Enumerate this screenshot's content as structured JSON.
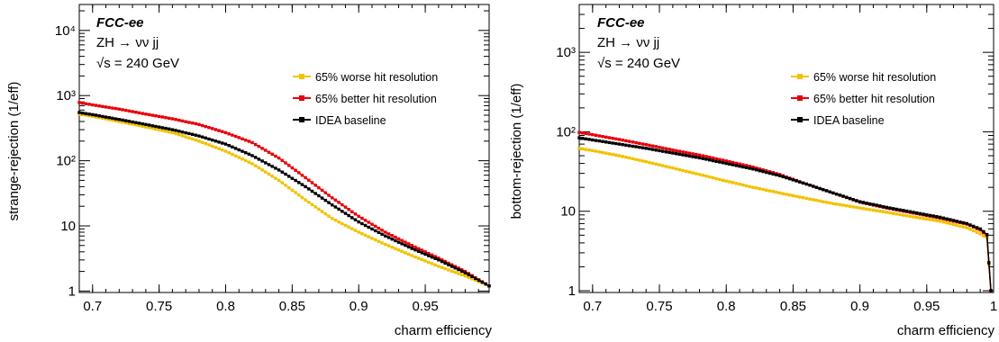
{
  "chart_data": [
    {
      "type": "line",
      "xlabel": "charm efficiency",
      "ylabel": "strange-rejection (1/eff)",
      "yscale": "log",
      "xlim": [
        0.69,
        0.998
      ],
      "ylim": [
        0.95,
        25000
      ],
      "xticks": [
        0.7,
        0.75,
        0.8,
        0.85,
        0.9,
        0.95
      ],
      "xtick_labels": [
        "0.7",
        "0.75",
        "0.8",
        "0.85",
        "0.9",
        "0.95"
      ],
      "yticks": [
        1,
        10,
        100,
        1000,
        10000
      ],
      "ytick_labels": [
        "1",
        "10",
        "10²",
        "10³",
        "10⁴"
      ],
      "annotations": {
        "experiment": "FCC-ee",
        "process": "ZH → νν jj",
        "energy": "√s = 240 GeV"
      },
      "legend_position": "top-right",
      "series": [
        {
          "name": "65% worse hit resolution",
          "color": "#f2c200",
          "x": [
            0.69,
            0.7,
            0.72,
            0.74,
            0.76,
            0.78,
            0.8,
            0.82,
            0.84,
            0.86,
            0.88,
            0.9,
            0.92,
            0.94,
            0.96,
            0.98,
            0.998
          ],
          "values": [
            520,
            480,
            400,
            330,
            270,
            200,
            140,
            90,
            50,
            25,
            13,
            8,
            5.2,
            3.5,
            2.4,
            1.7,
            1.2
          ]
        },
        {
          "name": "65% better hit resolution",
          "color": "#e8000b",
          "x": [
            0.69,
            0.7,
            0.72,
            0.74,
            0.76,
            0.78,
            0.8,
            0.82,
            0.84,
            0.86,
            0.88,
            0.9,
            0.92,
            0.94,
            0.96,
            0.98,
            0.998
          ],
          "values": [
            780,
            720,
            620,
            520,
            440,
            360,
            270,
            190,
            110,
            55,
            27,
            14,
            8,
            5,
            3.2,
            2,
            1.2
          ]
        },
        {
          "name": "IDEA baseline",
          "color": "#000000",
          "x": [
            0.69,
            0.7,
            0.72,
            0.74,
            0.76,
            0.78,
            0.8,
            0.82,
            0.84,
            0.86,
            0.88,
            0.9,
            0.92,
            0.94,
            0.96,
            0.98,
            0.998
          ],
          "values": [
            550,
            510,
            430,
            360,
            300,
            240,
            180,
            120,
            72,
            40,
            21,
            11.5,
            7,
            4.5,
            3,
            1.9,
            1.2
          ]
        }
      ]
    },
    {
      "type": "line",
      "xlabel": "charm efficiency",
      "ylabel": "bottom-rejection (1/eff)",
      "yscale": "log",
      "xlim": [
        0.69,
        1.0
      ],
      "ylim": [
        0.95,
        4000
      ],
      "xticks": [
        0.7,
        0.75,
        0.8,
        0.85,
        0.9,
        0.95,
        1.0
      ],
      "xtick_labels": [
        "0.7",
        "0.75",
        "0.8",
        "0.85",
        "0.9",
        "0.95",
        "1"
      ],
      "yticks": [
        1,
        10,
        100,
        1000
      ],
      "ytick_labels": [
        "1",
        "10",
        "10²",
        "10³"
      ],
      "annotations": {
        "experiment": "FCC-ee",
        "process": "ZH → νν jj",
        "energy": "√s = 240 GeV"
      },
      "legend_position": "top-right",
      "series": [
        {
          "name": "65% worse hit resolution",
          "color": "#f2c200",
          "x": [
            0.69,
            0.7,
            0.72,
            0.74,
            0.76,
            0.78,
            0.8,
            0.82,
            0.84,
            0.86,
            0.88,
            0.9,
            0.92,
            0.94,
            0.96,
            0.98,
            0.99,
            0.995,
            0.998
          ],
          "values": [
            62,
            58,
            50,
            42,
            35,
            29,
            24,
            20,
            17,
            14.5,
            12.5,
            11,
            9.7,
            8.5,
            7.5,
            6.2,
            5.2,
            4.6,
            1.0
          ]
        },
        {
          "name": "65% better hit resolution",
          "color": "#e8000b",
          "x": [
            0.69,
            0.7,
            0.72,
            0.74,
            0.76,
            0.78,
            0.8,
            0.82,
            0.84,
            0.86,
            0.88,
            0.9,
            0.92,
            0.94,
            0.96,
            0.98,
            0.99,
            0.995,
            0.998
          ],
          "values": [
            98,
            92,
            80,
            69,
            59,
            51,
            43,
            36,
            29,
            22,
            17,
            13,
            11,
            9.5,
            8.2,
            6.9,
            5.8,
            5,
            1.0
          ]
        },
        {
          "name": "IDEA baseline",
          "color": "#000000",
          "x": [
            0.69,
            0.7,
            0.72,
            0.74,
            0.76,
            0.78,
            0.8,
            0.82,
            0.84,
            0.86,
            0.88,
            0.9,
            0.92,
            0.94,
            0.96,
            0.98,
            0.99,
            0.995,
            0.998
          ],
          "values": [
            84,
            79,
            70,
            62,
            54,
            47,
            40,
            34,
            28,
            22,
            17,
            13.2,
            11.2,
            9.7,
            8.4,
            7,
            6,
            5.1,
            1.0
          ]
        }
      ]
    }
  ]
}
